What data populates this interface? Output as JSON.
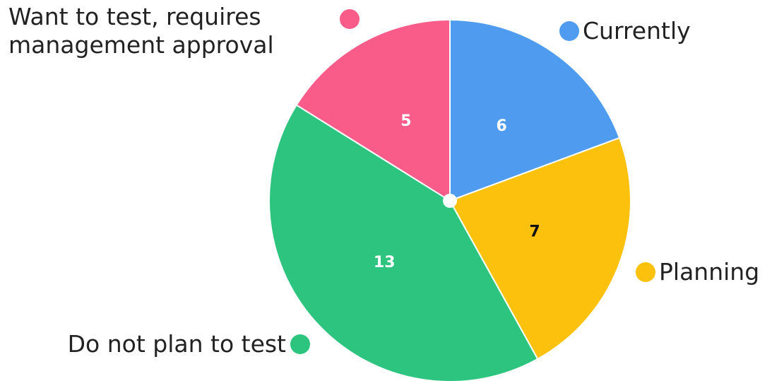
{
  "chart_data": {
    "type": "pie",
    "categories": [
      "Currently",
      "Planning",
      "Do not plan to test",
      "Want to test, requires management approval"
    ],
    "values": [
      6,
      7,
      13,
      5
    ],
    "colors": [
      "#4e9bef",
      "#fbc10d",
      "#2cc47e",
      "#fa5c8a"
    ],
    "value_label_colors": [
      "#ffffff",
      "#111111",
      "#ffffff",
      "#ffffff"
    ]
  }
}
